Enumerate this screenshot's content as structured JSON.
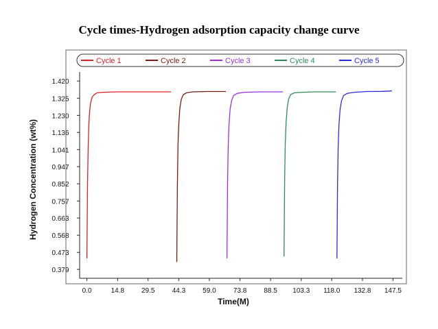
{
  "chart_data": {
    "type": "line",
    "title": "Cycle times-Hydrogen adsorption capacity change curve",
    "xlabel": "Time(M)",
    "ylabel": "Hydrogen Concentration (wt%)",
    "xlim": [
      -3.5,
      152
    ],
    "ylim": [
      0.33,
      1.47
    ],
    "x_ticks": [
      "0.0",
      "14.8",
      "29.5",
      "44.3",
      "59.0",
      "73.8",
      "88.5",
      "103.3",
      "118.0",
      "132.8",
      "147.5"
    ],
    "y_ticks": [
      "1.420",
      "1.325",
      "1.230",
      "1.136",
      "1.041",
      "0.947",
      "0.852",
      "0.757",
      "0.663",
      "0.568",
      "0.473",
      "0.379"
    ],
    "legend_position": "top",
    "series": [
      {
        "name": "Cycle 1",
        "color": "#e02020",
        "x": [
          0.0,
          0.3,
          0.6,
          0.9,
          1.3,
          1.8,
          2.5,
          3.5,
          5.0,
          8.0,
          15.0,
          25.0,
          35.0,
          40.5
        ],
        "y": [
          0.44,
          0.85,
          1.05,
          1.17,
          1.25,
          1.3,
          1.33,
          1.345,
          1.355,
          1.358,
          1.36,
          1.36,
          1.36,
          1.36
        ]
      },
      {
        "name": "Cycle 2",
        "color": "#7a1a10",
        "x": [
          43.3,
          43.6,
          43.9,
          44.3,
          44.8,
          45.5,
          46.5,
          48.0,
          51.0,
          58.0,
          64.0,
          67.0
        ],
        "y": [
          0.42,
          0.85,
          1.07,
          1.19,
          1.27,
          1.32,
          1.345,
          1.355,
          1.36,
          1.362,
          1.362,
          1.362
        ]
      },
      {
        "name": "Cycle 3",
        "color": "#9b30e0",
        "x": [
          67.5,
          67.8,
          68.1,
          68.5,
          69.0,
          69.7,
          70.7,
          72.5,
          76.0,
          85.0,
          92.0,
          94.5
        ],
        "y": [
          0.44,
          0.86,
          1.06,
          1.18,
          1.26,
          1.31,
          1.34,
          1.352,
          1.358,
          1.36,
          1.36,
          1.36
        ]
      },
      {
        "name": "Cycle 4",
        "color": "#2e8b57",
        "x": [
          95.0,
          95.3,
          95.6,
          96.0,
          96.5,
          97.2,
          98.2,
          100.0,
          104.0,
          110.0,
          117.0,
          120.0
        ],
        "y": [
          0.45,
          0.87,
          1.07,
          1.19,
          1.27,
          1.32,
          1.345,
          1.355,
          1.358,
          1.36,
          1.36,
          1.36
        ]
      },
      {
        "name": "Cycle 5",
        "color": "#2a2ad8",
        "x": [
          120.5,
          120.8,
          121.1,
          121.5,
          122.0,
          122.7,
          123.7,
          125.5,
          129.0,
          135.0,
          142.0,
          147.0
        ],
        "y": [
          0.44,
          0.86,
          1.06,
          1.18,
          1.26,
          1.31,
          1.34,
          1.352,
          1.358,
          1.362,
          1.363,
          1.365
        ]
      }
    ]
  }
}
